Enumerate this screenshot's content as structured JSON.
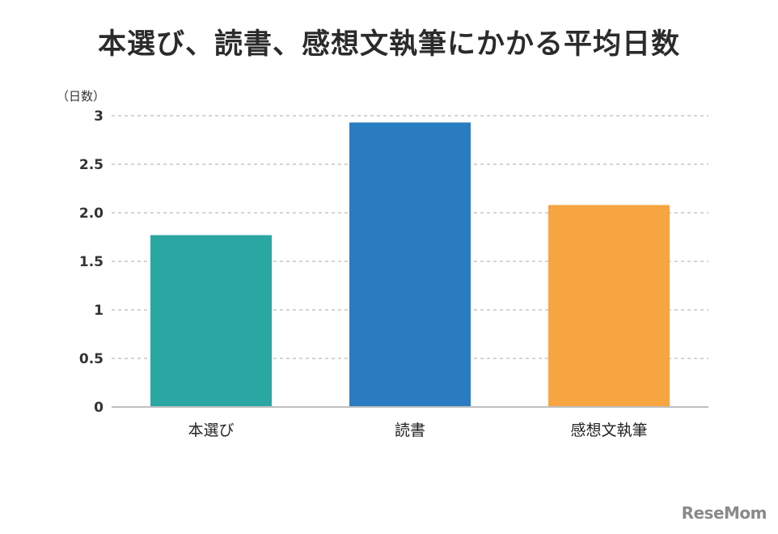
{
  "chart_data": {
    "type": "bar",
    "title": "本選び、読書、感想文執筆にかかる平均日数",
    "ylabel": "（日数）",
    "xlabel": "",
    "categories": [
      "本選び",
      "読書",
      "感想文執筆"
    ],
    "values": [
      1.77,
      2.93,
      2.08
    ],
    "colors": [
      "#2aa7a2",
      "#2a7cc0",
      "#f7a541"
    ],
    "ylim": [
      0,
      3
    ],
    "yticks": [
      0,
      0.5,
      1,
      1.5,
      2.0,
      2.5,
      3
    ],
    "ytick_labels": [
      "0",
      "0.5",
      "1",
      "1.5",
      "2.0",
      "2.5",
      "3"
    ],
    "grid": true,
    "legend": "none"
  },
  "branding": {
    "logo_text": "ReseMom"
  }
}
